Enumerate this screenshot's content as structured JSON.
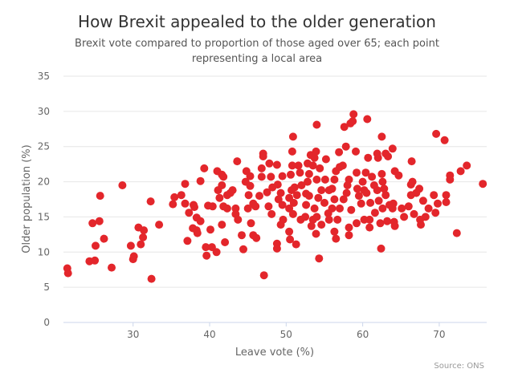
{
  "chart_data": {
    "type": "scatter",
    "title": "How Brexit appealed to the older generation",
    "subtitle_lines": [
      "Brexit vote compared to proportion of those aged over 65; each point",
      "representing a local area"
    ],
    "xlabel": "Leave vote (%)",
    "ylabel": "Older population (%)",
    "source": "Source: ONS",
    "xlim": [
      20.9,
      76.2
    ],
    "ylim": [
      0,
      35
    ],
    "xticks": [
      30,
      40,
      50,
      60,
      70
    ],
    "yticks": [
      0,
      5,
      10,
      15,
      20,
      25,
      30,
      35
    ],
    "grid": "horizontal",
    "legend": "none",
    "marker_color": "#e3262b",
    "points": [
      [
        21.4,
        7.7
      ],
      [
        21.5,
        7.0
      ],
      [
        24.3,
        8.7
      ],
      [
        25.0,
        8.8
      ],
      [
        24.7,
        14.1
      ],
      [
        25.6,
        14.4
      ],
      [
        25.7,
        18.0
      ],
      [
        25.1,
        10.9
      ],
      [
        26.2,
        11.9
      ],
      [
        27.2,
        7.8
      ],
      [
        28.6,
        19.5
      ],
      [
        29.7,
        10.9
      ],
      [
        30.0,
        9.0
      ],
      [
        30.1,
        9.4
      ],
      [
        30.7,
        13.5
      ],
      [
        31.4,
        13.1
      ],
      [
        31.3,
        12.1
      ],
      [
        31.0,
        11.1
      ],
      [
        32.3,
        17.2
      ],
      [
        32.4,
        6.2
      ],
      [
        33.4,
        13.9
      ],
      [
        35.2,
        16.8
      ],
      [
        35.4,
        17.8
      ],
      [
        36.3,
        18.1
      ],
      [
        36.8,
        19.7
      ],
      [
        36.8,
        16.9
      ],
      [
        37.1,
        11.6
      ],
      [
        37.3,
        15.6
      ],
      [
        37.9,
        16.7
      ],
      [
        38.0,
        16.4
      ],
      [
        37.8,
        13.4
      ],
      [
        38.3,
        14.9
      ],
      [
        38.3,
        13.1
      ],
      [
        38.4,
        12.7
      ],
      [
        38.8,
        14.4
      ],
      [
        38.8,
        20.1
      ],
      [
        39.3,
        21.9
      ],
      [
        39.5,
        10.7
      ],
      [
        39.6,
        9.5
      ],
      [
        40.1,
        13.2
      ],
      [
        39.8,
        16.6
      ],
      [
        40.4,
        16.5
      ],
      [
        40.3,
        10.7
      ],
      [
        40.9,
        10.0
      ],
      [
        41.0,
        21.5
      ],
      [
        41.1,
        18.8
      ],
      [
        41.3,
        17.7
      ],
      [
        41.6,
        21.0
      ],
      [
        41.8,
        20.7
      ],
      [
        41.6,
        19.5
      ],
      [
        41.6,
        13.9
      ],
      [
        42.0,
        11.4
      ],
      [
        41.8,
        16.5
      ],
      [
        42.3,
        16.2
      ],
      [
        42.3,
        18.1
      ],
      [
        42.7,
        18.4
      ],
      [
        43.0,
        18.8
      ],
      [
        43.6,
        22.9
      ],
      [
        43.4,
        16.2
      ],
      [
        43.4,
        15.4
      ],
      [
        43.7,
        14.6
      ],
      [
        44.2,
        12.4
      ],
      [
        44.4,
        10.4
      ],
      [
        44.8,
        21.5
      ],
      [
        44.7,
        20.0
      ],
      [
        45.3,
        20.8
      ],
      [
        45.1,
        18.1
      ],
      [
        45.4,
        14.1
      ],
      [
        45.7,
        12.4
      ],
      [
        45.3,
        19.4
      ],
      [
        45.0,
        16.2
      ],
      [
        45.7,
        16.9
      ],
      [
        47.1,
        6.7
      ],
      [
        46.1,
        12.0
      ],
      [
        47.0,
        24.0
      ],
      [
        47.0,
        23.6
      ],
      [
        46.8,
        21.9
      ],
      [
        46.8,
        20.7
      ],
      [
        47.8,
        22.6
      ],
      [
        48.8,
        22.4
      ],
      [
        48.0,
        20.7
      ],
      [
        49.5,
        20.8
      ],
      [
        48.8,
        11.2
      ],
      [
        48.8,
        10.5
      ],
      [
        49.3,
        13.9
      ],
      [
        49.6,
        14.6
      ],
      [
        50.9,
        26.4
      ],
      [
        50.8,
        24.3
      ],
      [
        50.8,
        22.3
      ],
      [
        50.6,
        21.0
      ],
      [
        51.6,
        22.3
      ],
      [
        51.8,
        21.3
      ],
      [
        50.4,
        12.9
      ],
      [
        50.5,
        11.8
      ],
      [
        51.3,
        11.1
      ],
      [
        48.2,
        19.2
      ],
      [
        48.9,
        19.6
      ],
      [
        49.3,
        18.4
      ],
      [
        47.7,
        16.5
      ],
      [
        48.1,
        15.4
      ],
      [
        49.5,
        16.7
      ],
      [
        50.4,
        17.7
      ],
      [
        50.7,
        18.8
      ],
      [
        51.1,
        19.2
      ],
      [
        51.4,
        18.1
      ],
      [
        50.4,
        16.2
      ],
      [
        50.9,
        15.4
      ],
      [
        51.9,
        14.6
      ],
      [
        52.6,
        18.3
      ],
      [
        52.6,
        16.7
      ],
      [
        52.8,
        20.0
      ],
      [
        53.0,
        21.1
      ],
      [
        52.8,
        22.6
      ],
      [
        53.2,
        23.8
      ],
      [
        53.7,
        23.4
      ],
      [
        53.9,
        24.3
      ],
      [
        53.5,
        22.3
      ],
      [
        54.0,
        28.1
      ],
      [
        54.4,
        21.9
      ],
      [
        54.0,
        20.3
      ],
      [
        54.6,
        18.8
      ],
      [
        54.2,
        17.7
      ],
      [
        53.7,
        16.2
      ],
      [
        53.5,
        14.6
      ],
      [
        53.3,
        13.7
      ],
      [
        53.9,
        12.6
      ],
      [
        54.6,
        13.9
      ],
      [
        54.3,
        9.1
      ],
      [
        55.2,
        23.2
      ],
      [
        55.1,
        20.3
      ],
      [
        55.6,
        18.8
      ],
      [
        55.6,
        14.6
      ],
      [
        56.0,
        16.2
      ],
      [
        56.3,
        17.5
      ],
      [
        56.3,
        20.3
      ],
      [
        56.5,
        21.5
      ],
      [
        56.9,
        24.2
      ],
      [
        57.0,
        22.1
      ],
      [
        57.4,
        22.3
      ],
      [
        57.6,
        27.8
      ],
      [
        57.8,
        25.0
      ],
      [
        58.4,
        28.3
      ],
      [
        58.7,
        28.6
      ],
      [
        58.8,
        29.6
      ],
      [
        59.1,
        24.3
      ],
      [
        59.2,
        21.3
      ],
      [
        58.2,
        20.3
      ],
      [
        57.9,
        18.4
      ],
      [
        57.0,
        16.2
      ],
      [
        56.7,
        14.6
      ],
      [
        56.3,
        12.9
      ],
      [
        56.5,
        11.9
      ],
      [
        58.2,
        13.5
      ],
      [
        58.2,
        12.4
      ],
      [
        59.2,
        14.1
      ],
      [
        59.3,
        19.0
      ],
      [
        60.2,
        18.8
      ],
      [
        60.5,
        18.4
      ],
      [
        59.8,
        16.9
      ],
      [
        60.2,
        14.6
      ],
      [
        60.9,
        13.5
      ],
      [
        60.9,
        14.6
      ],
      [
        61.6,
        15.6
      ],
      [
        60.6,
        28.9
      ],
      [
        60.7,
        23.4
      ],
      [
        60.4,
        21.3
      ],
      [
        61.2,
        20.7
      ],
      [
        61.9,
        24.0
      ],
      [
        62.0,
        23.4
      ],
      [
        62.5,
        26.4
      ],
      [
        63.0,
        24.0
      ],
      [
        63.3,
        23.6
      ],
      [
        63.9,
        24.7
      ],
      [
        62.5,
        21.1
      ],
      [
        62.6,
        20.0
      ],
      [
        61.9,
        18.8
      ],
      [
        62.1,
        17.3
      ],
      [
        62.6,
        16.2
      ],
      [
        63.0,
        18.1
      ],
      [
        63.5,
        16.7
      ],
      [
        64.0,
        16.9
      ],
      [
        63.9,
        16.2
      ],
      [
        62.3,
        14.1
      ],
      [
        63.2,
        14.4
      ],
      [
        64.1,
        14.3
      ],
      [
        64.2,
        13.7
      ],
      [
        62.4,
        10.5
      ],
      [
        64.2,
        21.5
      ],
      [
        64.7,
        20.9
      ],
      [
        65.1,
        16.2
      ],
      [
        65.4,
        15.0
      ],
      [
        66.0,
        16.5
      ],
      [
        66.3,
        19.6
      ],
      [
        66.5,
        20.0
      ],
      [
        66.4,
        22.9
      ],
      [
        66.3,
        18.1
      ],
      [
        66.7,
        15.4
      ],
      [
        67.0,
        18.4
      ],
      [
        67.4,
        19.0
      ],
      [
        67.6,
        13.9
      ],
      [
        67.5,
        14.6
      ],
      [
        67.9,
        17.3
      ],
      [
        68.2,
        15.0
      ],
      [
        68.6,
        16.2
      ],
      [
        69.3,
        18.1
      ],
      [
        69.5,
        15.6
      ],
      [
        69.6,
        26.8
      ],
      [
        69.8,
        16.9
      ],
      [
        70.7,
        25.9
      ],
      [
        70.9,
        18.1
      ],
      [
        70.9,
        17.1
      ],
      [
        71.4,
        20.9
      ],
      [
        71.4,
        20.3
      ],
      [
        72.3,
        12.7
      ],
      [
        72.8,
        21.5
      ],
      [
        73.6,
        22.3
      ],
      [
        75.7,
        19.7
      ],
      [
        52.0,
        19.5
      ],
      [
        53.0,
        18.0
      ],
      [
        55.0,
        17.0
      ],
      [
        56.0,
        19.0
      ],
      [
        57.5,
        17.5
      ],
      [
        58.5,
        16.0
      ],
      [
        59.5,
        18.0
      ],
      [
        61.0,
        17.0
      ],
      [
        61.5,
        19.5
      ],
      [
        55.5,
        15.5
      ],
      [
        54.0,
        15.0
      ],
      [
        52.5,
        15.0
      ],
      [
        51.0,
        17.0
      ],
      [
        49.0,
        17.5
      ],
      [
        46.5,
        18.0
      ],
      [
        46.0,
        16.5
      ],
      [
        47.5,
        18.5
      ],
      [
        58.0,
        19.5
      ],
      [
        60.0,
        20.0
      ],
      [
        62.8,
        19.0
      ]
    ]
  }
}
